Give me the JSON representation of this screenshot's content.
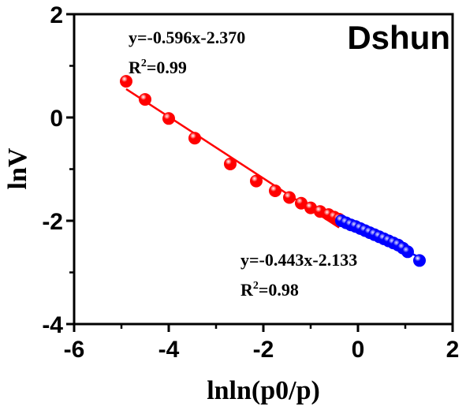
{
  "chart_data": {
    "type": "scatter",
    "title": "Dshun",
    "xlabel": "lnln(p0/p)",
    "ylabel": "lnV",
    "xlim": [
      -6,
      2
    ],
    "ylim": [
      -4,
      2
    ],
    "x_ticks": [
      -6,
      -4,
      -2,
      0,
      2
    ],
    "y_ticks": [
      2,
      0,
      -2,
      -4
    ],
    "x_tick_labels": [
      "-6",
      "-4",
      "-2",
      "0",
      "2"
    ],
    "y_tick_labels": [
      "2",
      "0",
      "-2",
      "-4"
    ],
    "grid": false,
    "series": [
      {
        "color": "#ff0000",
        "points": [
          {
            "x": -4.9,
            "y": 0.7
          },
          {
            "x": -4.5,
            "y": 0.35
          },
          {
            "x": -4.0,
            "y": -0.02
          },
          {
            "x": -3.45,
            "y": -0.4
          },
          {
            "x": -2.7,
            "y": -0.9
          },
          {
            "x": -2.15,
            "y": -1.23
          },
          {
            "x": -1.75,
            "y": -1.42
          },
          {
            "x": -1.45,
            "y": -1.55
          },
          {
            "x": -1.2,
            "y": -1.66
          },
          {
            "x": -1.0,
            "y": -1.75
          },
          {
            "x": -0.8,
            "y": -1.82
          },
          {
            "x": -0.62,
            "y": -1.88
          },
          {
            "x": -0.5,
            "y": -1.93
          },
          {
            "x": -0.4,
            "y": -1.97
          }
        ],
        "fit": {
          "slope": -0.596,
          "intercept": -2.37,
          "x_range": [
            -4.9,
            -0.4
          ]
        },
        "equation": "y=-0.596x-2.370",
        "r2_label": "R",
        "r2_sup": "2",
        "r2_value": "=0.99"
      },
      {
        "color": "#0000ff",
        "points": [
          {
            "x": -0.35,
            "y": -2.0
          },
          {
            "x": -0.25,
            "y": -2.04
          },
          {
            "x": -0.15,
            "y": -2.08
          },
          {
            "x": -0.05,
            "y": -2.11
          },
          {
            "x": 0.05,
            "y": -2.15
          },
          {
            "x": 0.15,
            "y": -2.19
          },
          {
            "x": 0.25,
            "y": -2.23
          },
          {
            "x": 0.35,
            "y": -2.27
          },
          {
            "x": 0.45,
            "y": -2.31
          },
          {
            "x": 0.55,
            "y": -2.35
          },
          {
            "x": 0.65,
            "y": -2.39
          },
          {
            "x": 0.75,
            "y": -2.43
          },
          {
            "x": 0.85,
            "y": -2.47
          },
          {
            "x": 0.95,
            "y": -2.53
          },
          {
            "x": 1.05,
            "y": -2.6
          },
          {
            "x": 1.3,
            "y": -2.77
          }
        ],
        "fit": {
          "slope": -0.443,
          "intercept": -2.133,
          "x_range": [
            -0.35,
            1.3
          ]
        },
        "equation": "y=-0.443x-2.133",
        "r2_label": "R",
        "r2_sup": "2",
        "r2_value": "=0.98"
      }
    ]
  }
}
